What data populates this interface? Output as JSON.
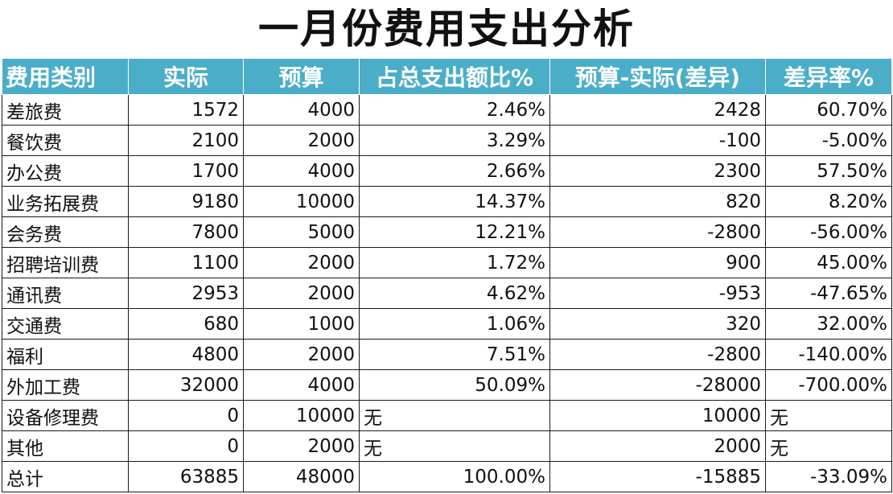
{
  "title": "一月份费用支出分析",
  "headers": [
    "费用类别",
    "实际",
    "预算",
    "占总支出额比%",
    "预算-实际(差异)",
    "差异率%"
  ],
  "rows": [
    {
      "category": "差旅费",
      "actual": "1572",
      "budget": "4000",
      "share": "2.46%",
      "diff": "2428",
      "rate": "60.70%"
    },
    {
      "category": "餐饮费",
      "actual": "2100",
      "budget": "2000",
      "share": "3.29%",
      "diff": "-100",
      "rate": "-5.00%"
    },
    {
      "category": "办公费",
      "actual": "1700",
      "budget": "4000",
      "share": "2.66%",
      "diff": "2300",
      "rate": "57.50%"
    },
    {
      "category": "业务拓展费",
      "actual": "9180",
      "budget": "10000",
      "share": "14.37%",
      "diff": "820",
      "rate": "8.20%"
    },
    {
      "category": "会务费",
      "actual": "7800",
      "budget": "5000",
      "share": "12.21%",
      "diff": "-2800",
      "rate": "-56.00%"
    },
    {
      "category": "招聘培训费",
      "actual": "1100",
      "budget": "2000",
      "share": "1.72%",
      "diff": "900",
      "rate": "45.00%"
    },
    {
      "category": "通讯费",
      "actual": "2953",
      "budget": "2000",
      "share": "4.62%",
      "diff": "-953",
      "rate": "-47.65%"
    },
    {
      "category": "交通费",
      "actual": "680",
      "budget": "1000",
      "share": "1.06%",
      "diff": "320",
      "rate": "32.00%"
    },
    {
      "category": "福利",
      "actual": "4800",
      "budget": "2000",
      "share": "7.51%",
      "diff": "-2800",
      "rate": "-140.00%"
    },
    {
      "category": "外加工费",
      "actual": "32000",
      "budget": "4000",
      "share": "50.09%",
      "diff": "-28000",
      "rate": "-700.00%"
    },
    {
      "category": "设备修理费",
      "actual": "0",
      "budget": "10000",
      "share": "无",
      "diff": "10000",
      "rate": "无"
    },
    {
      "category": "其他",
      "actual": "0",
      "budget": "2000",
      "share": "无",
      "diff": "2000",
      "rate": "无"
    }
  ],
  "total": {
    "category": "总计",
    "actual": "63885",
    "budget": "48000",
    "share": "100.00%",
    "diff": "-15885",
    "rate": "-33.09%"
  },
  "colors": {
    "header_bg": "#4aaec9",
    "header_text": "#ffffff",
    "grid": "#1a1a1a"
  }
}
